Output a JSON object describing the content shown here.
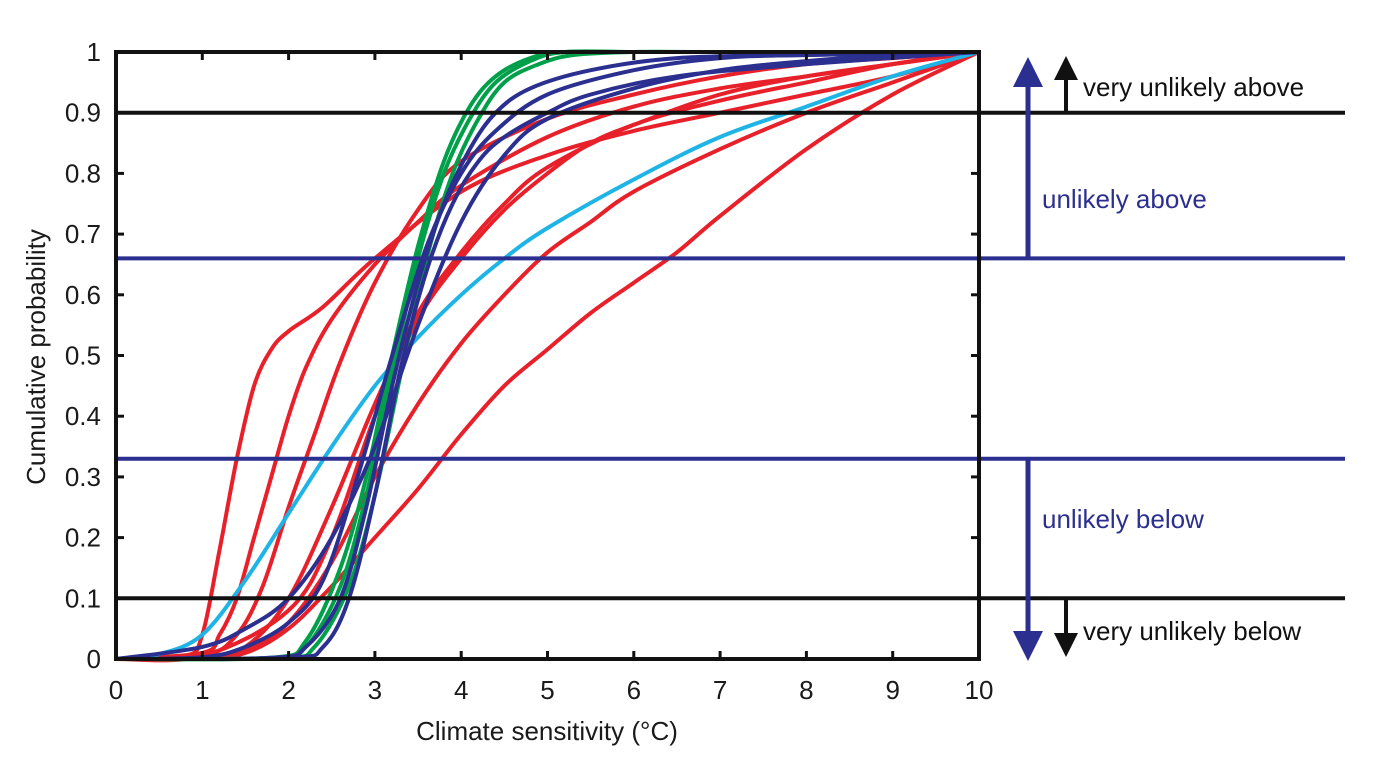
{
  "chart_data": {
    "type": "line",
    "xlabel": "Climate sensitivity (°C)",
    "ylabel": "Cumulative probability",
    "xlim": [
      0,
      10
    ],
    "ylim": [
      0,
      1
    ],
    "xticks": [
      "0",
      "1",
      "2",
      "3",
      "4",
      "5",
      "6",
      "7",
      "8",
      "9",
      "10"
    ],
    "yticks": [
      "0",
      "0.1",
      "0.2",
      "0.3",
      "0.4",
      "0.5",
      "0.6",
      "0.7",
      "0.8",
      "0.9",
      "1"
    ],
    "grid": false,
    "colors": {
      "red": "#e8202a",
      "green": "#00a04a",
      "navy": "#2b2f8f",
      "cyan": "#1eb4e6",
      "black": "#111111"
    },
    "thresholds": [
      {
        "y": 0.1,
        "color": "#111111"
      },
      {
        "y": 0.33,
        "color": "#2b2f8f"
      },
      {
        "y": 0.66,
        "color": "#2b2f8f"
      },
      {
        "y": 0.9,
        "color": "#111111"
      }
    ],
    "annotations": {
      "very_unlikely_above": "very unlikely above",
      "unlikely_above": "unlikely above",
      "unlikely_below": "unlikely below",
      "very_unlikely_below": "very unlikely below"
    },
    "series": [
      {
        "color": "#e8202a",
        "x": [
          0,
          0.8,
          1.0,
          1.2,
          1.4,
          1.6,
          1.8,
          2.0,
          2.4,
          3.0,
          4.0,
          5.0,
          6.0,
          7.0,
          8.0,
          9.0,
          10.0
        ],
        "y": [
          0,
          0.005,
          0.04,
          0.18,
          0.33,
          0.45,
          0.51,
          0.54,
          0.58,
          0.66,
          0.77,
          0.83,
          0.87,
          0.9,
          0.93,
          0.96,
          1.0
        ]
      },
      {
        "color": "#e8202a",
        "x": [
          0,
          1.0,
          1.2,
          1.4,
          1.6,
          1.8,
          2.0,
          2.2,
          2.5,
          3.0,
          3.5,
          4.0,
          5.0,
          6.0,
          7.0,
          8.0,
          9.0,
          10.0
        ],
        "y": [
          0,
          0.01,
          0.04,
          0.1,
          0.2,
          0.3,
          0.4,
          0.48,
          0.56,
          0.65,
          0.72,
          0.78,
          0.86,
          0.91,
          0.94,
          0.96,
          0.98,
          1.0
        ]
      },
      {
        "color": "#e8202a",
        "x": [
          0,
          1.0,
          1.4,
          1.7,
          2.0,
          2.3,
          2.6,
          3.0,
          3.5,
          4.0,
          5.0,
          6.0,
          7.0,
          8.0,
          9.0,
          10.0
        ],
        "y": [
          0,
          0.005,
          0.04,
          0.12,
          0.25,
          0.37,
          0.49,
          0.62,
          0.74,
          0.82,
          0.89,
          0.93,
          0.96,
          0.98,
          0.99,
          1.0
        ]
      },
      {
        "color": "#e8202a",
        "x": [
          0,
          1.0,
          1.5,
          2.0,
          2.5,
          3.0,
          3.5,
          4.0,
          4.5,
          5.0,
          6.0,
          7.0,
          8.0,
          9.0,
          10.0
        ],
        "y": [
          0,
          0.003,
          0.02,
          0.1,
          0.25,
          0.42,
          0.57,
          0.67,
          0.75,
          0.81,
          0.88,
          0.92,
          0.95,
          0.98,
          1.0
        ]
      },
      {
        "color": "#e8202a",
        "x": [
          0,
          1.0,
          1.5,
          2.0,
          2.5,
          3.0,
          3.5,
          4.0,
          4.5,
          5.0,
          5.5,
          6.0,
          7.0,
          8.0,
          9.0,
          10.0
        ],
        "y": [
          0,
          0.003,
          0.015,
          0.06,
          0.16,
          0.3,
          0.42,
          0.52,
          0.6,
          0.67,
          0.72,
          0.77,
          0.84,
          0.9,
          0.95,
          1.0
        ]
      },
      {
        "color": "#e8202a",
        "x": [
          0,
          1.0,
          1.5,
          2.0,
          2.5,
          3.0,
          3.5,
          4.0,
          4.5,
          5.0,
          5.5,
          6.0,
          6.5,
          7.0,
          8.0,
          9.0,
          10.0
        ],
        "y": [
          0,
          0.002,
          0.01,
          0.05,
          0.12,
          0.2,
          0.28,
          0.37,
          0.45,
          0.51,
          0.57,
          0.62,
          0.67,
          0.73,
          0.84,
          0.93,
          1.0
        ]
      },
      {
        "color": "#e8202a",
        "x": [
          0,
          1.0,
          2.0,
          2.5,
          3.0,
          3.5,
          4.0,
          4.5,
          5.0,
          5.5,
          6.0,
          7.0,
          8.0,
          9.0,
          10.0
        ],
        "y": [
          0,
          0.005,
          0.08,
          0.2,
          0.4,
          0.56,
          0.66,
          0.74,
          0.8,
          0.85,
          0.88,
          0.93,
          0.96,
          0.98,
          1.0
        ]
      },
      {
        "color": "#1eb4e6",
        "x": [
          0,
          0.5,
          1.0,
          1.5,
          2.0,
          2.5,
          3.0,
          3.5,
          4.0,
          4.5,
          5.0,
          6.0,
          7.0,
          8.0,
          9.0,
          10.0
        ],
        "y": [
          0,
          0.008,
          0.04,
          0.13,
          0.24,
          0.35,
          0.45,
          0.53,
          0.6,
          0.66,
          0.71,
          0.79,
          0.86,
          0.91,
          0.96,
          1.0
        ]
      },
      {
        "color": "#00a04a",
        "x": [
          0,
          1.8,
          2.2,
          2.6,
          2.9,
          3.2,
          3.5,
          3.8,
          4.1,
          4.4,
          4.8,
          5.2,
          6.0,
          7.0,
          10.0
        ],
        "y": [
          0,
          0.002,
          0.03,
          0.15,
          0.3,
          0.5,
          0.68,
          0.82,
          0.91,
          0.96,
          0.99,
          1.0,
          1.0,
          1.0,
          1.0
        ]
      },
      {
        "color": "#00a04a",
        "x": [
          0,
          1.8,
          2.2,
          2.6,
          2.9,
          3.2,
          3.5,
          3.8,
          4.1,
          4.4,
          4.8,
          5.2,
          6.0,
          7.0,
          10.0
        ],
        "y": [
          0,
          0.002,
          0.02,
          0.12,
          0.27,
          0.47,
          0.66,
          0.8,
          0.89,
          0.95,
          0.985,
          1.0,
          1.0,
          1.0,
          1.0
        ]
      },
      {
        "color": "#00a04a",
        "x": [
          0,
          1.9,
          2.3,
          2.7,
          3.0,
          3.3,
          3.6,
          3.9,
          4.2,
          4.5,
          4.9,
          5.3,
          6.0,
          7.0,
          10.0
        ],
        "y": [
          0,
          0.002,
          0.02,
          0.12,
          0.27,
          0.47,
          0.66,
          0.8,
          0.89,
          0.95,
          0.98,
          0.995,
          1.0,
          1.0,
          1.0
        ]
      },
      {
        "color": "#2b2f8f",
        "x": [
          0,
          1.0,
          1.5,
          2.0,
          2.5,
          3.0,
          3.5,
          4.0,
          4.5,
          5.0,
          6.0,
          7.0,
          8.0,
          9.0,
          10.0
        ],
        "y": [
          0,
          0.02,
          0.05,
          0.1,
          0.2,
          0.35,
          0.55,
          0.72,
          0.83,
          0.89,
          0.94,
          0.97,
          0.985,
          0.995,
          1.0
        ]
      },
      {
        "color": "#2b2f8f",
        "x": [
          0,
          1.0,
          1.5,
          2.0,
          2.4,
          2.8,
          3.2,
          3.6,
          4.0,
          4.4,
          5.0,
          6.0,
          7.0,
          8.0,
          10.0
        ],
        "y": [
          0,
          0.003,
          0.02,
          0.06,
          0.13,
          0.3,
          0.5,
          0.68,
          0.8,
          0.87,
          0.93,
          0.97,
          0.99,
          0.995,
          1.0
        ]
      },
      {
        "color": "#2b2f8f",
        "x": [
          0,
          1.8,
          2.2,
          2.6,
          2.9,
          3.2,
          3.5,
          3.8,
          4.1,
          4.4,
          4.8,
          5.5,
          6.5,
          8.0,
          10.0
        ],
        "y": [
          0,
          0.002,
          0.02,
          0.1,
          0.25,
          0.45,
          0.62,
          0.75,
          0.84,
          0.9,
          0.94,
          0.97,
          0.99,
          0.995,
          1.0
        ]
      },
      {
        "color": "#2b2f8f",
        "x": [
          0,
          2.0,
          2.4,
          2.7,
          3.0,
          3.3,
          3.6,
          3.9,
          4.2,
          4.5,
          5.0,
          5.5,
          6.5,
          8.0,
          10.0
        ],
        "y": [
          0,
          0.002,
          0.02,
          0.1,
          0.27,
          0.48,
          0.64,
          0.75,
          0.82,
          0.86,
          0.9,
          0.93,
          0.96,
          0.98,
          1.0
        ]
      }
    ]
  }
}
